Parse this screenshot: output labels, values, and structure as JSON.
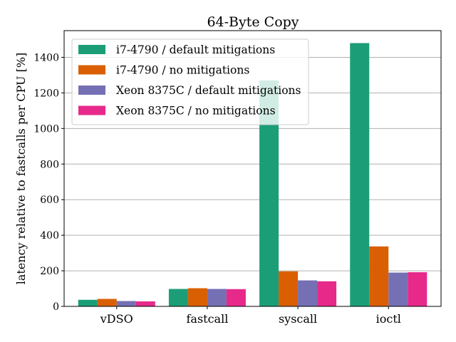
{
  "chart_data": {
    "type": "bar",
    "title": "64-Byte Copy",
    "xlabel": "",
    "ylabel": "latency relative to fastcalls per CPU [%]",
    "categories": [
      "vDSO",
      "fastcall",
      "syscall",
      "ioctl"
    ],
    "series": [
      {
        "name": "i7-4790 / default mitigations",
        "color": "#1b9e77",
        "values": [
          37,
          98,
          1270,
          1480
        ]
      },
      {
        "name": "i7-4790 / no mitigations",
        "color": "#d95f02",
        "values": [
          42,
          102,
          197,
          337
        ]
      },
      {
        "name": "Xeon 8375C / default mitigations",
        "color": "#7570b3",
        "values": [
          30,
          98,
          146,
          190
        ]
      },
      {
        "name": "Xeon 8375C / no mitigations",
        "color": "#e7298a",
        "values": [
          28,
          97,
          141,
          192
        ]
      }
    ],
    "ylim": [
      0,
      1550
    ],
    "yticks": [
      0,
      200,
      400,
      600,
      800,
      1000,
      1200,
      1400
    ],
    "grid": "y",
    "legend_position": "top-left"
  }
}
